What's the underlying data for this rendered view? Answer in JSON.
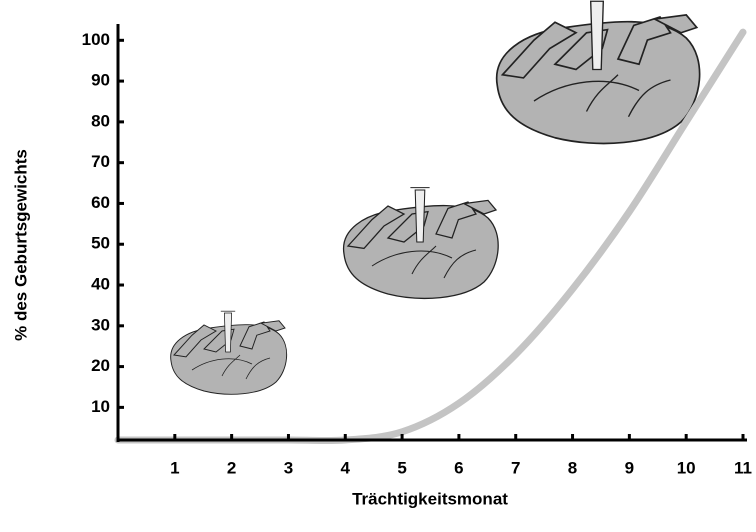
{
  "chart_data": {
    "type": "line",
    "x_label": "Trächtigkeitsmonat",
    "y_label": "% des Geburtsgewichts",
    "x": [
      0,
      1,
      2,
      3,
      4,
      5,
      6,
      7,
      8,
      9,
      10,
      11
    ],
    "series": [
      {
        "color": "#c4c4c4",
        "values": [
          2,
          2,
          2,
          2,
          2,
          4,
          11,
          23,
          39,
          58,
          80,
          102
        ]
      }
    ],
    "xlim": [
      0,
      11
    ],
    "ylim": [
      2,
      104
    ],
    "xticks": [
      1,
      2,
      3,
      4,
      5,
      6,
      7,
      8,
      9,
      10,
      11
    ],
    "yticks": [
      10,
      20,
      30,
      40,
      50,
      60,
      70,
      80,
      90,
      100
    ]
  }
}
